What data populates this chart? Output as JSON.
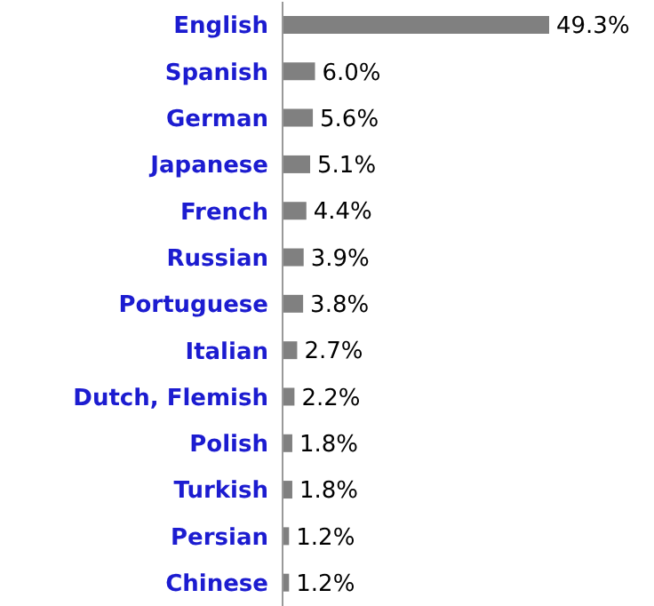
{
  "chart_data": {
    "type": "bar",
    "orientation": "horizontal",
    "categories": [
      "English",
      "Spanish",
      "German",
      "Japanese",
      "French",
      "Russian",
      "Portuguese",
      "Italian",
      "Dutch, Flemish",
      "Polish",
      "Turkish",
      "Persian",
      "Chinese"
    ],
    "values": [
      49.3,
      6.0,
      5.6,
      5.1,
      4.4,
      3.9,
      3.8,
      2.7,
      2.2,
      1.8,
      1.8,
      1.2,
      1.2
    ],
    "value_labels": [
      "49.3%",
      "6.0%",
      "5.6%",
      "5.1%",
      "4.4%",
      "3.9%",
      "3.8%",
      "2.7%",
      "2.2%",
      "1.8%",
      "1.8%",
      "1.2%",
      "1.2%"
    ],
    "color": "#808080"
  }
}
